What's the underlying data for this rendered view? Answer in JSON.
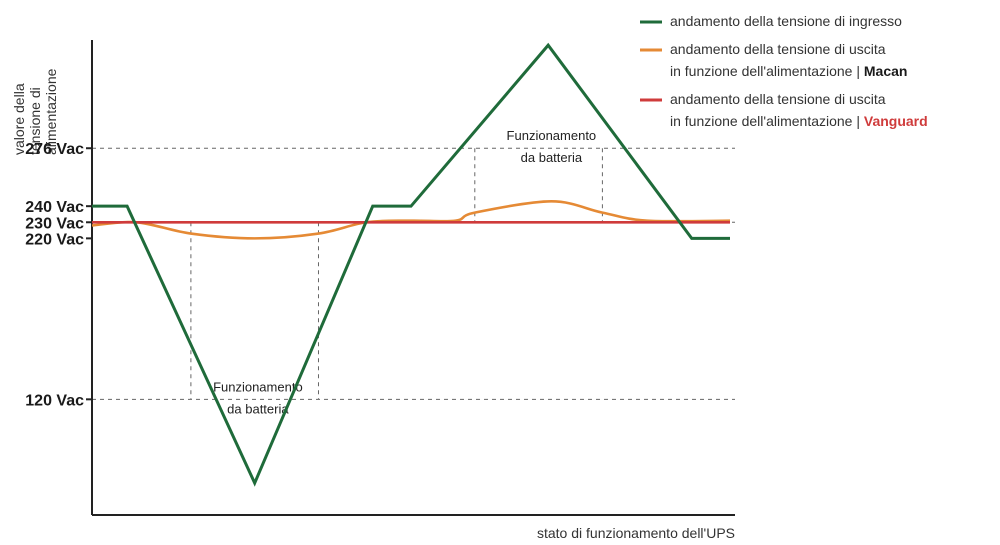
{
  "chart_data": {
    "type": "line",
    "ylabel_lines": [
      "valore della",
      "tensione di",
      "alimentazione"
    ],
    "xlabel": "stato di funzionamento dell'UPS",
    "y_ticks": [
      {
        "value": 276,
        "label": "276 Vac"
      },
      {
        "value": 240,
        "label": "240 Vac"
      },
      {
        "value": 230,
        "label": "230 Vac"
      },
      {
        "value": 220,
        "label": "220 Vac"
      },
      {
        "value": 120,
        "label": "120 Vac"
      }
    ],
    "ylim": [
      50,
      342
    ],
    "xlim": [
      0,
      100
    ],
    "dashed_levels": [
      276,
      230,
      120
    ],
    "annotations": [
      {
        "lines": [
          "Funzionamento",
          "da batteria"
        ],
        "x": 26,
        "y": 120
      },
      {
        "lines": [
          "Funzionamento",
          "da batteria"
        ],
        "x": 72,
        "y": 276
      }
    ],
    "battery_windows": [
      {
        "x_start": 15.5,
        "x_end": 35.5,
        "from": 230,
        "to": 120
      },
      {
        "x_start": 60,
        "x_end": 80,
        "from": 276,
        "to": 230
      }
    ],
    "series": [
      {
        "name": "andamento della tensione di ingresso",
        "color": "#1f6b3a",
        "x": [
          0,
          5.5,
          25.5,
          44,
          50,
          71.5,
          94,
          100
        ],
        "y": [
          240,
          240,
          68,
          240,
          240,
          340,
          220,
          220
        ]
      },
      {
        "name": "andamento della tensione di uscita in funzione dell'alimentazione | Macan",
        "color": "#e58a35",
        "x": [
          0,
          7,
          15.5,
          25.5,
          35.5,
          43,
          50,
          57,
          60,
          72,
          80,
          87,
          100
        ],
        "y": [
          228,
          230,
          223,
          220,
          223,
          230,
          231,
          231,
          236,
          243,
          236,
          231,
          231
        ]
      },
      {
        "name": "andamento della tensione di uscita in funzione dell'alimentazione | Vanguard",
        "color": "#cf3b3b",
        "x": [
          0,
          100
        ],
        "y": [
          230,
          230
        ]
      }
    ],
    "legend": {
      "position": "top-right",
      "entries": [
        {
          "color": "#1f6b3a",
          "lines": [
            {
              "text": "andamento della tensione di ingresso"
            }
          ]
        },
        {
          "color": "#e58a35",
          "lines": [
            {
              "text": "andamento della tensione di uscita"
            },
            {
              "text": "in funzione dell'alimentazione | ",
              "bold": "Macan",
              "bold_color": "#1a1a1a"
            }
          ]
        },
        {
          "color": "#cf3b3b",
          "lines": [
            {
              "text": "andamento della tensione di uscita"
            },
            {
              "text": "in funzione dell'alimentazione | ",
              "bold": "Vanguard",
              "bold_color": "#cf3b3b"
            }
          ]
        }
      ]
    }
  }
}
